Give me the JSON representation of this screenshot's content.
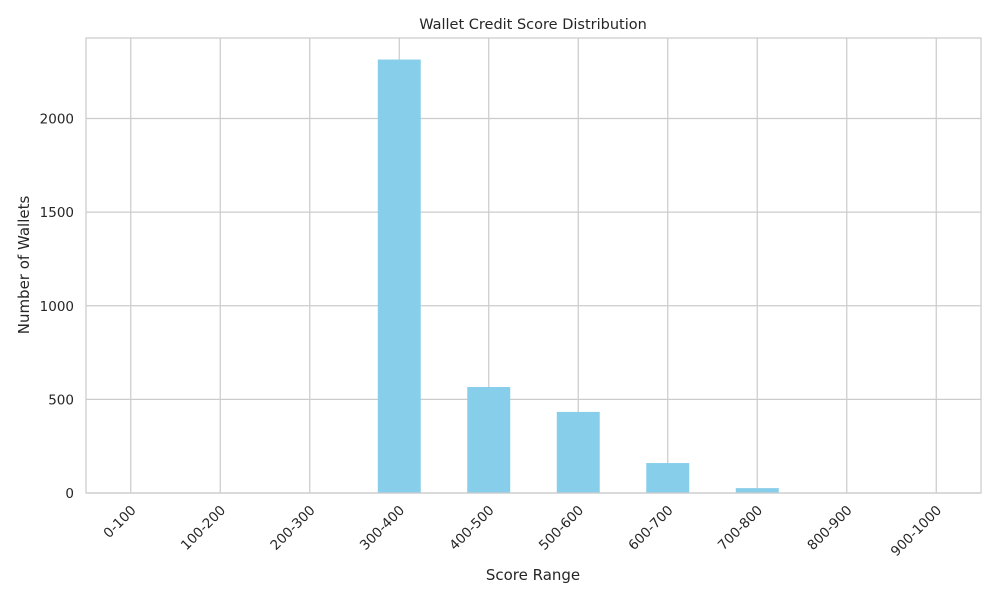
{
  "chart_data": {
    "type": "bar",
    "title": "Wallet Credit Score Distribution",
    "xlabel": "Score Range",
    "ylabel": "Number of Wallets",
    "categories": [
      "0-100",
      "100-200",
      "200-300",
      "300-400",
      "400-500",
      "500-600",
      "600-700",
      "700-800",
      "800-900",
      "900-1000"
    ],
    "values": [
      0,
      0,
      0,
      2315,
      566,
      433,
      160,
      26,
      0,
      0
    ],
    "ylim": [
      0,
      2430
    ],
    "yticks": [
      0,
      500,
      1000,
      1500,
      2000
    ],
    "grid": true,
    "bar_color": "#87CEEB",
    "grid_color": "#cccccc"
  }
}
